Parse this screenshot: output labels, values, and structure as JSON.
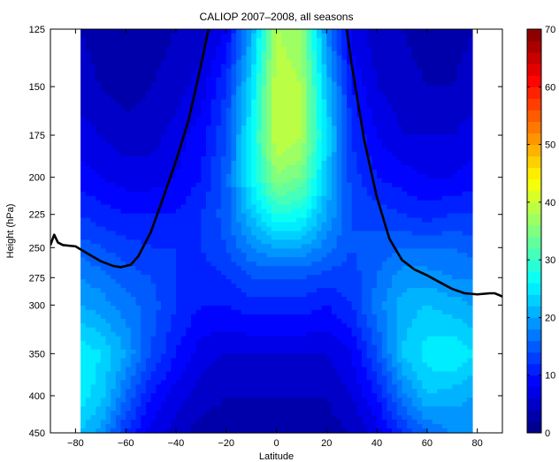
{
  "chart_data": {
    "type": "heatmap",
    "title": "CALIOP 2007–2008, all seasons",
    "xlabel": "Latitude",
    "ylabel": "Height (hPa)",
    "xlim": [
      -90,
      90
    ],
    "ylim": [
      125,
      450
    ],
    "y_scale": "log",
    "y_reversed": true,
    "x_ticks": [
      -80,
      -60,
      -40,
      -20,
      0,
      20,
      40,
      60,
      80
    ],
    "y_ticks": [
      125,
      150,
      175,
      200,
      225,
      250,
      275,
      300,
      350,
      400,
      450
    ],
    "data_lat_range": [
      -78,
      78
    ],
    "colorbar": {
      "min": 0,
      "max": 70,
      "ticks": [
        0,
        10,
        20,
        30,
        40,
        50,
        60,
        70
      ],
      "colormap": "jet",
      "levels": 35
    },
    "field": {
      "lat": [
        -78,
        -70,
        -60,
        -50,
        -40,
        -30,
        -20,
        -10,
        0,
        10,
        20,
        30,
        40,
        50,
        60,
        70,
        78
      ],
      "pressure": [
        125,
        150,
        175,
        200,
        225,
        250,
        275,
        300,
        350,
        400,
        450
      ],
      "values": [
        [
          4,
          3,
          3,
          3,
          4,
          5,
          8,
          20,
          38,
          36,
          18,
          7,
          5,
          4,
          3,
          3,
          4
        ],
        [
          5,
          4,
          3,
          4,
          5,
          7,
          12,
          24,
          40,
          38,
          22,
          10,
          6,
          5,
          4,
          4,
          5
        ],
        [
          7,
          6,
          5,
          5,
          7,
          9,
          14,
          26,
          40,
          38,
          24,
          12,
          8,
          6,
          6,
          6,
          7
        ],
        [
          9,
          8,
          7,
          7,
          8,
          10,
          15,
          26,
          36,
          34,
          22,
          13,
          10,
          9,
          8,
          8,
          9
        ],
        [
          12,
          11,
          10,
          10,
          10,
          12,
          15,
          22,
          28,
          27,
          20,
          14,
          13,
          12,
          11,
          12,
          12
        ],
        [
          15,
          14,
          13,
          12,
          12,
          12,
          14,
          18,
          20,
          20,
          17,
          14,
          15,
          16,
          16,
          16,
          15
        ],
        [
          18,
          17,
          15,
          14,
          12,
          11,
          12,
          14,
          14,
          14,
          13,
          13,
          16,
          19,
          19,
          18,
          18
        ],
        [
          20,
          19,
          17,
          15,
          12,
          10,
          10,
          11,
          11,
          11,
          10,
          12,
          17,
          21,
          22,
          21,
          20
        ],
        [
          26,
          24,
          20,
          14,
          10,
          7,
          6,
          6,
          6,
          6,
          6,
          8,
          14,
          22,
          25,
          26,
          24
        ],
        [
          25,
          23,
          16,
          10,
          7,
          5,
          4,
          4,
          4,
          4,
          4,
          6,
          10,
          17,
          22,
          21,
          20
        ],
        [
          22,
          19,
          12,
          7,
          5,
          3,
          3,
          3,
          3,
          3,
          3,
          4,
          7,
          12,
          16,
          18,
          18
        ]
      ]
    },
    "tropopause_line": {
      "color": "#000000",
      "x": [
        -90,
        -88.5,
        -87,
        -85,
        -80,
        -75,
        -70,
        -65,
        -62,
        -58,
        -55,
        -50,
        -45,
        -40,
        -35,
        -30,
        -27,
        -25,
        27,
        28,
        30,
        35,
        40,
        45,
        50,
        55,
        60,
        65,
        70,
        75,
        80,
        85,
        87,
        89,
        90
      ],
      "y": [
        248,
        240,
        246,
        248,
        249,
        255,
        261,
        265,
        266,
        264,
        257,
        238,
        213,
        190,
        167,
        140,
        125,
        115,
        115,
        125,
        140,
        178,
        213,
        243,
        260,
        268,
        273,
        279,
        285,
        289,
        290,
        289,
        289,
        291,
        292
      ]
    }
  }
}
